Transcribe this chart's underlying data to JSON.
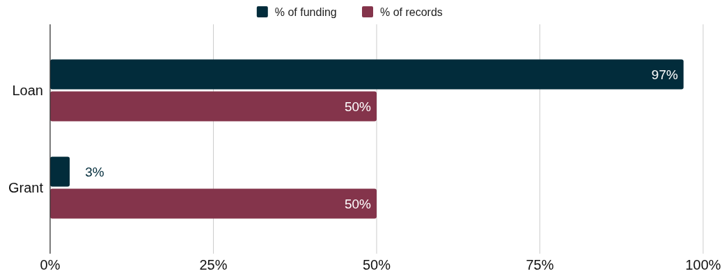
{
  "chart_data": {
    "type": "bar",
    "orientation": "horizontal",
    "categories": [
      "Loan",
      "Grant"
    ],
    "series": [
      {
        "name": "% of funding",
        "color": "#022c3b",
        "values": [
          97,
          3
        ],
        "value_labels": [
          "97%",
          "3%"
        ]
      },
      {
        "name": "% of records",
        "color": "#84344b",
        "values": [
          50,
          50
        ],
        "value_labels": [
          "50%",
          "50%"
        ]
      }
    ],
    "xlim": [
      0,
      100
    ],
    "xticks": [
      {
        "value": 0,
        "label": "0%"
      },
      {
        "value": 25,
        "label": "25%"
      },
      {
        "value": 50,
        "label": "50%"
      },
      {
        "value": 75,
        "label": "75%"
      },
      {
        "value": 100,
        "label": "100%"
      }
    ],
    "grid": "x",
    "legend": "top"
  }
}
